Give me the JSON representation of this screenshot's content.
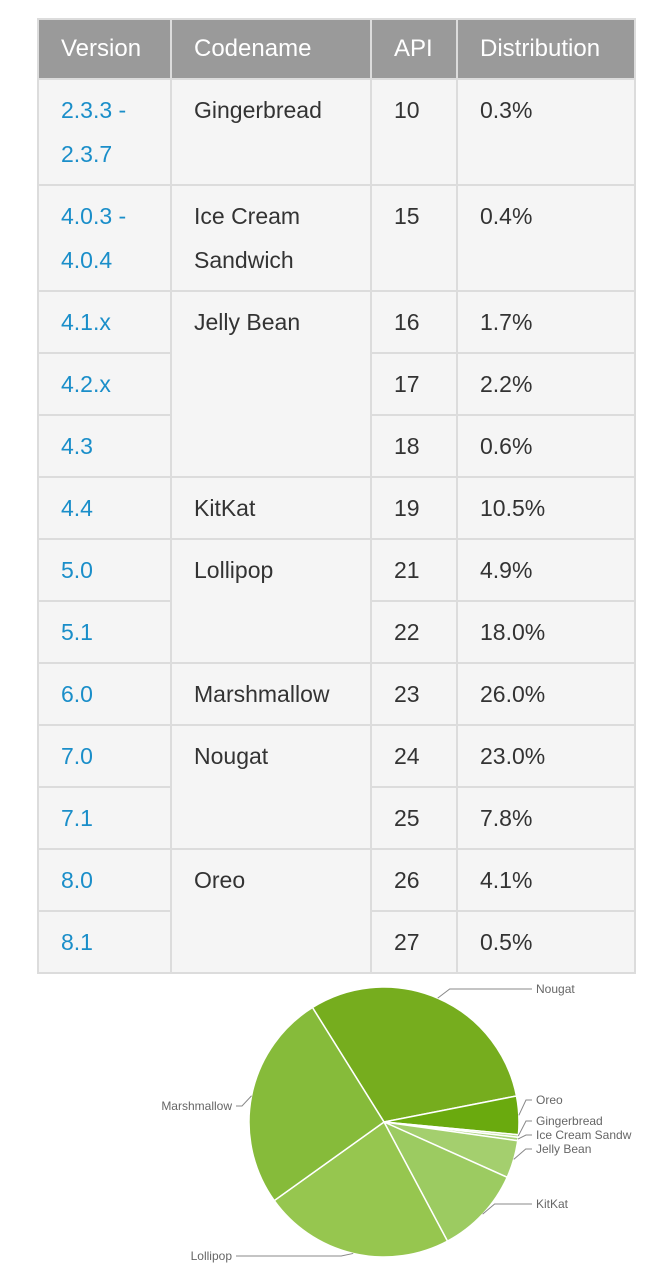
{
  "table": {
    "headers": [
      "Version",
      "Codename",
      "API",
      "Distribution"
    ],
    "rows": [
      {
        "version": "2.3.3 -\n2.3.7",
        "codename": "Gingerbread",
        "api": "10",
        "distribution": "0.3%"
      },
      {
        "version": "4.0.3 -\n4.0.4",
        "codename": "Ice Cream\nSandwich",
        "api": "15",
        "distribution": "0.4%"
      },
      {
        "version": "4.1.x",
        "codename": "Jelly Bean",
        "api": "16",
        "distribution": "1.7%"
      },
      {
        "version": "4.2.x",
        "codename": "",
        "api": "17",
        "distribution": "2.2%"
      },
      {
        "version": "4.3",
        "codename": "",
        "api": "18",
        "distribution": "0.6%"
      },
      {
        "version": "4.4",
        "codename": "KitKat",
        "api": "19",
        "distribution": "10.5%"
      },
      {
        "version": "5.0",
        "codename": "Lollipop",
        "api": "21",
        "distribution": "4.9%"
      },
      {
        "version": "5.1",
        "codename": "",
        "api": "22",
        "distribution": "18.0%"
      },
      {
        "version": "6.0",
        "codename": "Marshmallow",
        "api": "23",
        "distribution": "26.0%"
      },
      {
        "version": "7.0",
        "codename": "Nougat",
        "api": "24",
        "distribution": "23.0%"
      },
      {
        "version": "7.1",
        "codename": "",
        "api": "25",
        "distribution": "7.8%"
      },
      {
        "version": "8.0",
        "codename": "Oreo",
        "api": "26",
        "distribution": "4.1%"
      },
      {
        "version": "8.1",
        "codename": "",
        "api": "27",
        "distribution": "0.5%"
      }
    ]
  },
  "colors": {
    "header_bg": "#9a9a9a",
    "cell_bg": "#f5f5f5",
    "version_link": "#1a8ec9",
    "pie_greens": [
      "#76ad1e",
      "#6aaa0e",
      "#b5d98a",
      "#a9d27a",
      "#a4cf6e",
      "#9ccb61",
      "#96c64f",
      "#86bb3a"
    ]
  },
  "chart_data": {
    "type": "pie",
    "labels": [
      "Nougat",
      "Oreo",
      "Gingerbread",
      "Ice Cream Sandw",
      "Jelly Bean",
      "KitKat",
      "Lollipop",
      "Marshmallow"
    ],
    "values": [
      30.8,
      4.6,
      0.3,
      0.4,
      4.5,
      10.5,
      22.9,
      26.0
    ]
  }
}
